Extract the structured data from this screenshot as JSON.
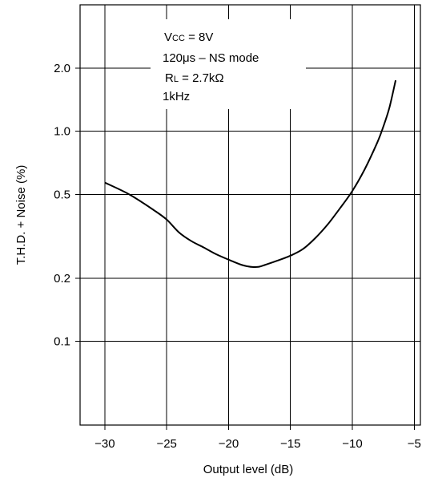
{
  "chart_data": {
    "type": "line",
    "xlabel": "Output level (dB)",
    "ylabel": "T.H.D. + Noise  (%)",
    "x_ticks": [
      "−30",
      "−25",
      "−20",
      "−15",
      "−10",
      "−5"
    ],
    "y_ticks": [
      "2.0",
      "1.0",
      "0.5",
      "0.2",
      "0.1"
    ],
    "xlim": [
      -32,
      -4.5
    ],
    "ylim": [
      0.04,
      4.0
    ],
    "y_scale": "log",
    "grid": true,
    "annotations": [
      "V",
      "CC",
      " = 8V",
      "120μs – NS mode",
      "R",
      "L",
      " = 2.7kΩ",
      "1kHz"
    ],
    "series": [
      {
        "x": [
          -30,
          -28,
          -26,
          -25,
          -24,
          -23,
          -22,
          -21,
          -20,
          -19,
          -18.5,
          -18,
          -17.5,
          -17,
          -16,
          -15,
          -14,
          -13,
          -12,
          -11,
          -10,
          -9,
          -8,
          -7.5,
          -7,
          -6.5
        ],
        "y": [
          0.57,
          0.5,
          0.42,
          0.38,
          0.33,
          0.3,
          0.28,
          0.26,
          0.245,
          0.232,
          0.228,
          0.226,
          0.227,
          0.232,
          0.243,
          0.256,
          0.275,
          0.31,
          0.36,
          0.43,
          0.52,
          0.66,
          0.88,
          1.05,
          1.3,
          1.75
        ]
      }
    ]
  }
}
